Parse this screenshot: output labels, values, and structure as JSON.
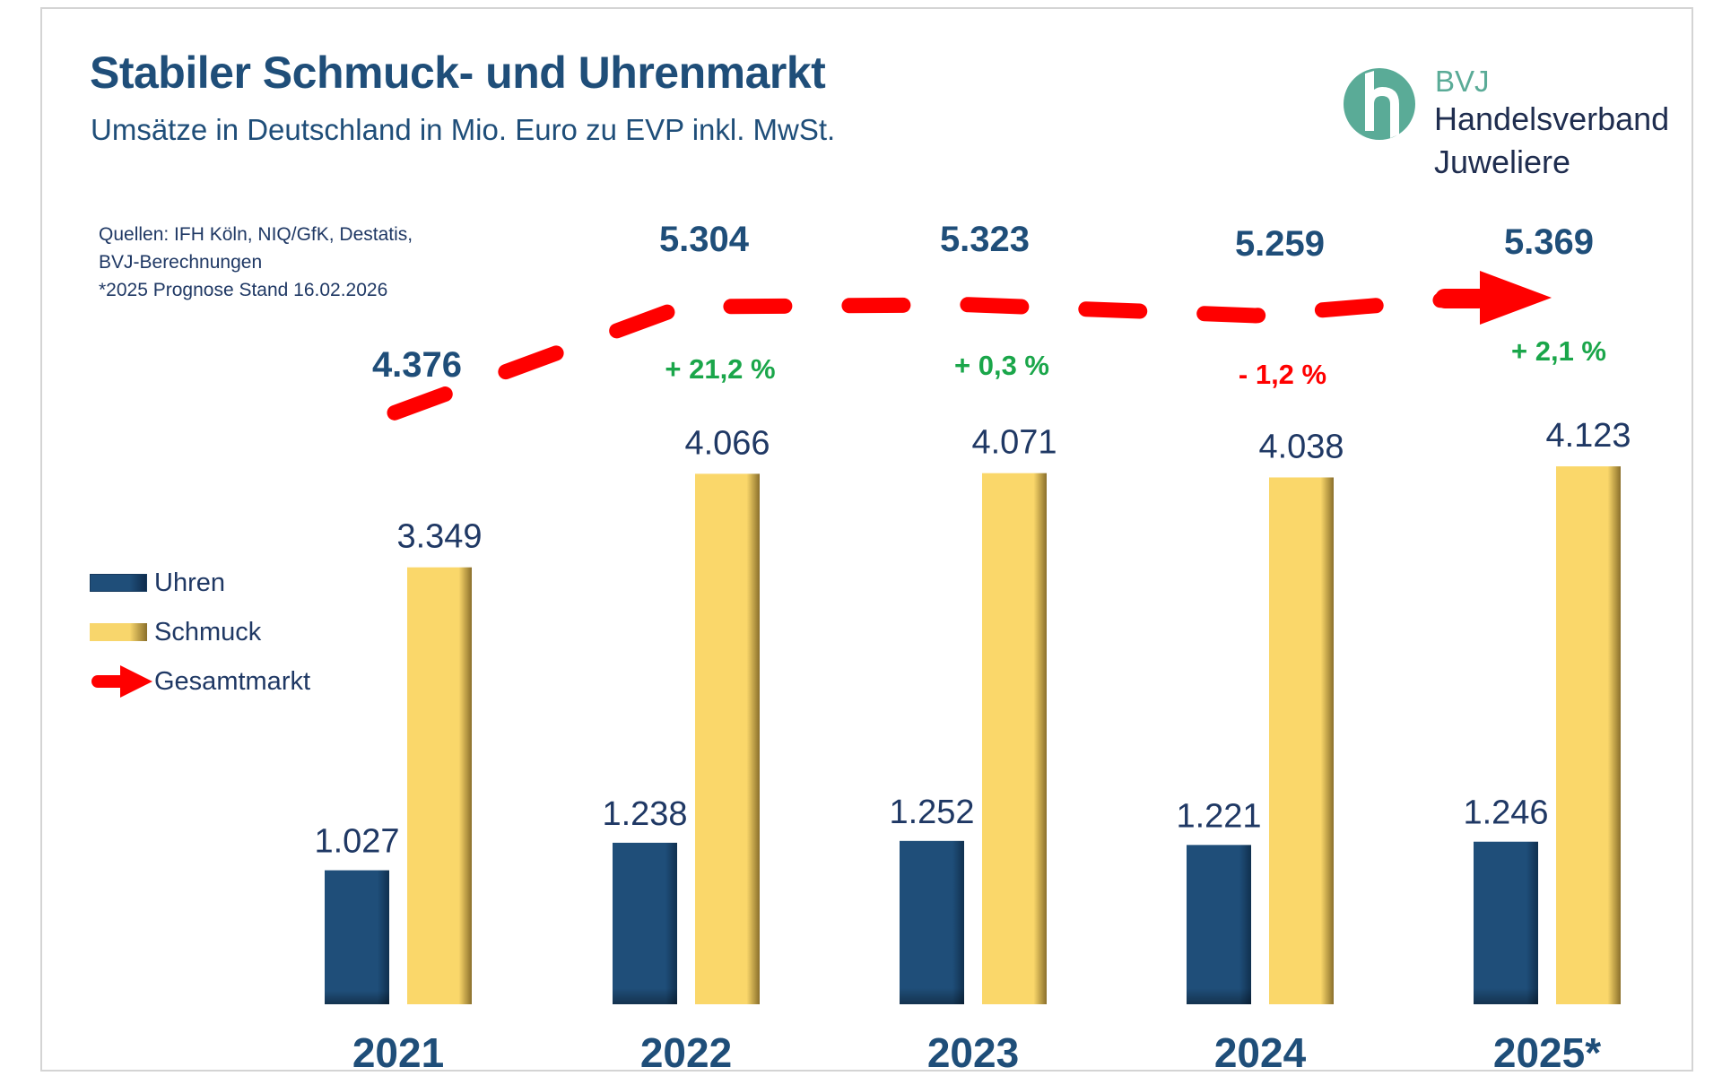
{
  "header": {
    "title": "Stabiler Schmuck- und Uhrenmarkt",
    "subtitle": "Umsätze in Deutschland in Mio. Euro zu EVP inkl. MwSt."
  },
  "sources": {
    "line1": "Quellen: IFH Köln, NIQ/GfK, Destatis,",
    "line2": "BVJ-Berechnungen",
    "line3": "*2025 Prognose Stand 16.02.2026"
  },
  "logo": {
    "icon": "bvj-h-logo-icon",
    "abbr": "BVJ",
    "line1": "Handelsverband",
    "line2": "Juweliere",
    "colors": {
      "accent": "#5aab97",
      "text": "#1f2d4f"
    }
  },
  "legend": [
    {
      "label": "Uhren",
      "icon": "bar-swatch-uhren",
      "color": "#1f4e79"
    },
    {
      "label": "Schmuck",
      "icon": "bar-swatch-schmuck",
      "color": "#f8d66c"
    },
    {
      "label": "Gesamtmarkt",
      "icon": "red-arrow-icon",
      "color": "#ff0000"
    }
  ],
  "chart_data": {
    "type": "bar",
    "title": "Stabiler Schmuck- und Uhrenmarkt",
    "subtitle": "Umsätze in Deutschland in Mio. Euro zu EVP inkl. MwSt.",
    "xlabel": "",
    "ylabel": "",
    "categories": [
      "2021",
      "2022",
      "2023",
      "2024",
      "2025*"
    ],
    "series": [
      {
        "name": "Uhren",
        "values": [
          1027,
          1238,
          1252,
          1221,
          1246
        ],
        "labels": [
          "1.027",
          "1.238",
          "1.252",
          "1.221",
          "1.246"
        ],
        "color": "#1f4e79"
      },
      {
        "name": "Schmuck",
        "values": [
          3349,
          4066,
          4071,
          4038,
          4123
        ],
        "labels": [
          "3.349",
          "4.066",
          "4.071",
          "4.038",
          "4.123"
        ],
        "color": "#f8d66c"
      }
    ],
    "total": {
      "name": "Gesamtmarkt",
      "type": "line",
      "style": "dashed-arrow",
      "color": "#ff0000",
      "values": [
        4376,
        5304,
        5323,
        5259,
        5369
      ],
      "labels": [
        "4.376",
        "5.304",
        "5.323",
        "5.259",
        "5.369"
      ]
    },
    "growth": [
      null,
      {
        "label": "+ 21,2 %",
        "value": 21.2,
        "color": "#1aa64a"
      },
      {
        "label": "+ 0,3 %",
        "value": 0.3,
        "color": "#1aa64a"
      },
      {
        "label": "-  1,2 %",
        "value": -1.2,
        "color": "#ff0000"
      },
      {
        "label": "+ 2,1 %",
        "value": 2.1,
        "color": "#1aa64a"
      }
    ],
    "ylim": [
      0,
      5500
    ],
    "grid": false,
    "axes_visible": false,
    "legend_position": "left"
  }
}
